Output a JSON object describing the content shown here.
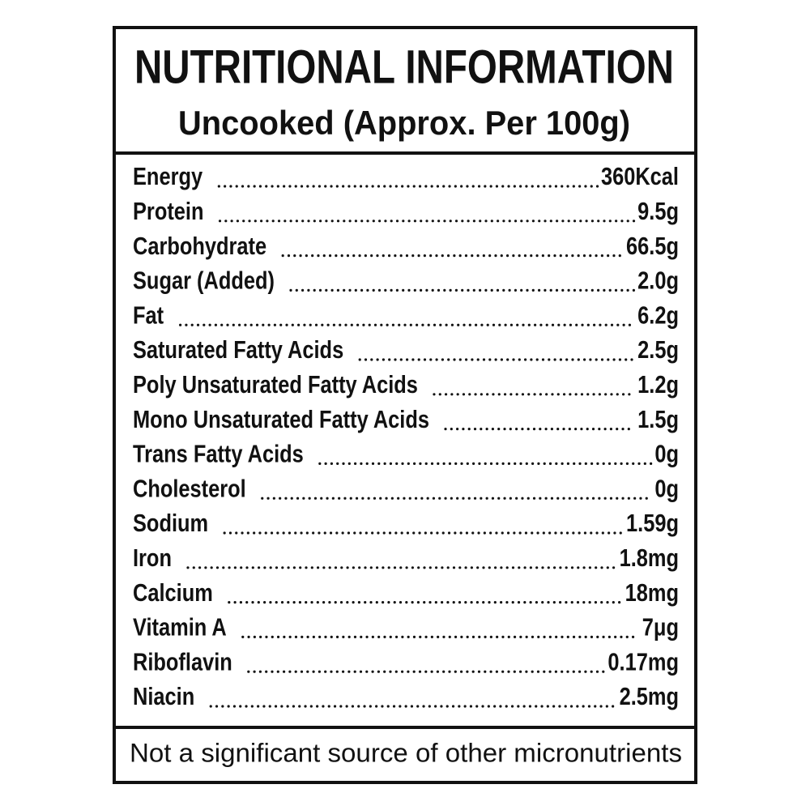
{
  "header": {
    "title": "NUTRITIONAL INFORMATION",
    "subtitle": "Uncooked (Approx. Per 100g)"
  },
  "table": {
    "rows": [
      [
        "Energy",
        "360Kcal"
      ],
      [
        "Protein",
        "9.5g"
      ],
      [
        "Carbohydrate",
        "66.5g"
      ],
      [
        "Sugar (Added)",
        "2.0g"
      ],
      [
        "Fat",
        "6.2g"
      ],
      [
        "Saturated Fatty Acids",
        "2.5g"
      ],
      [
        "Poly Unsaturated Fatty Acids",
        "1.2g"
      ],
      [
        "Mono Unsaturated Fatty Acids",
        "1.5g"
      ],
      [
        "Trans Fatty Acids",
        "0g"
      ],
      [
        "Cholesterol",
        "0g"
      ],
      [
        "Sodium",
        "1.59g"
      ],
      [
        "Iron",
        "1.8mg"
      ],
      [
        "Calcium",
        "18mg"
      ],
      [
        "Vitamin A",
        "7μg"
      ],
      [
        "Riboflavin",
        "0.17mg"
      ],
      [
        "Niacin",
        "2.5mg"
      ]
    ]
  },
  "footer": "Not a significant source of other micronutrients"
}
